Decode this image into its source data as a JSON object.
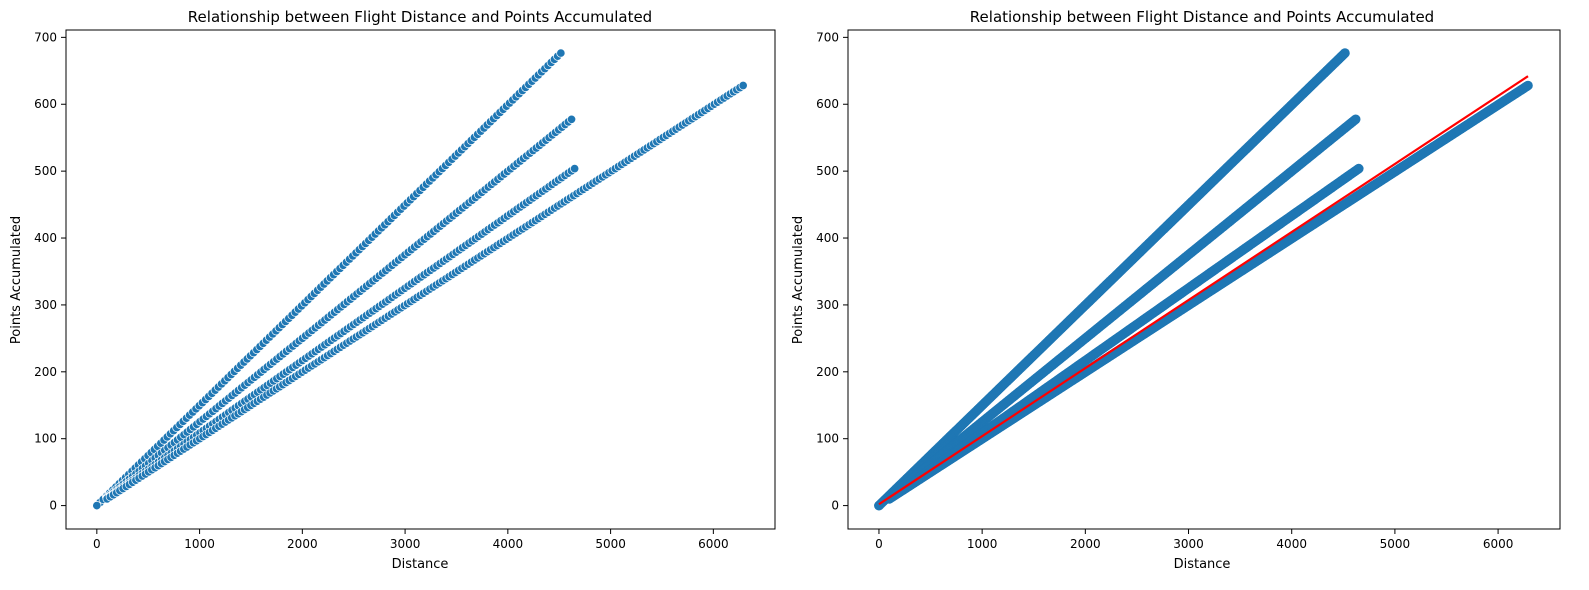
{
  "figure": {
    "background": "#ffffff"
  },
  "chart_data": [
    {
      "type": "scatter",
      "title": "Relationship between Flight Distance and Points Accumulated",
      "xlabel": "Distance",
      "ylabel": "Points Accumulated",
      "xlim": [
        -300,
        6600
      ],
      "ylim": [
        -35,
        711
      ],
      "xticks": [
        0,
        1000,
        2000,
        3000,
        4000,
        5000,
        6000
      ],
      "yticks": [
        0,
        100,
        200,
        300,
        400,
        500,
        600,
        700
      ],
      "grid": false,
      "marker_color": "#1f77b4",
      "series": [
        {
          "points_per_distance": 0.15,
          "x_range": [
            0,
            4516
          ],
          "y_range": [
            0,
            676.5
          ]
        },
        {
          "points_per_distance": 0.125,
          "x_range": [
            100,
            4620
          ],
          "y_range": [
            12.5,
            577.5
          ]
        },
        {
          "points_per_distance": 0.1083,
          "x_range": [
            100,
            4650
          ],
          "y_range": [
            10.8,
            503.8
          ]
        },
        {
          "points_per_distance": 0.1,
          "x_range": [
            100,
            6290
          ],
          "y_range": [
            10,
            628
          ]
        }
      ],
      "extra_points": [
        {
          "x": 0,
          "y": 0
        }
      ]
    },
    {
      "type": "scatter",
      "title": "Relationship between Flight Distance and Points Accumulated",
      "xlabel": "Distance",
      "ylabel": "Points Accumulated",
      "xlim": [
        -300,
        6600
      ],
      "ylim": [
        -35,
        711
      ],
      "xticks": [
        0,
        1000,
        2000,
        3000,
        4000,
        5000,
        6000
      ],
      "yticks": [
        0,
        100,
        200,
        300,
        400,
        500,
        600,
        700
      ],
      "grid": false,
      "marker_color": "#1f77b4",
      "series": [
        {
          "points_per_distance": 0.15,
          "x_range": [
            0,
            4516
          ],
          "y_range": [
            0,
            676.5
          ]
        },
        {
          "points_per_distance": 0.125,
          "x_range": [
            100,
            4620
          ],
          "y_range": [
            12.5,
            577.5
          ]
        },
        {
          "points_per_distance": 0.1083,
          "x_range": [
            100,
            4650
          ],
          "y_range": [
            10.8,
            503.8
          ]
        },
        {
          "points_per_distance": 0.1,
          "x_range": [
            100,
            6290
          ],
          "y_range": [
            10,
            628
          ]
        }
      ],
      "extra_points": [
        {
          "x": 0,
          "y": 0
        }
      ],
      "regression_line": {
        "color": "#ff0000",
        "x": [
          0,
          6290
        ],
        "y": [
          2,
          642
        ]
      }
    }
  ]
}
